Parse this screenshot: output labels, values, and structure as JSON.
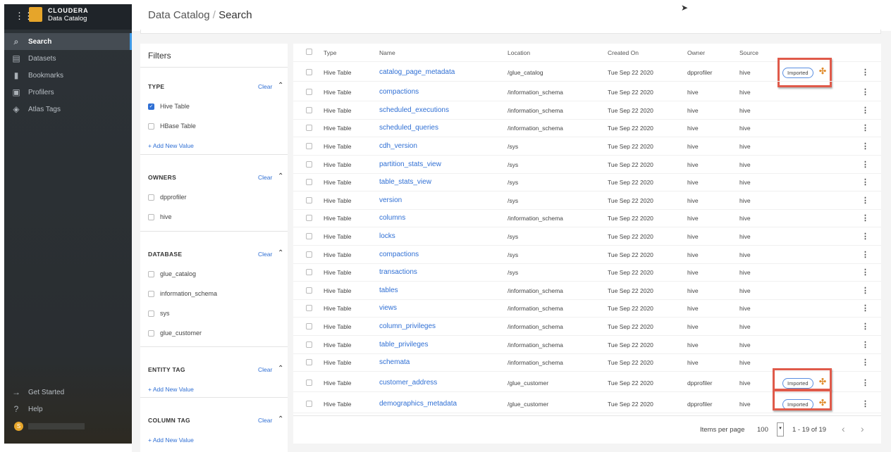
{
  "app": {
    "brand": "CLOUDERA",
    "product": "Data Catalog",
    "user_initial": "S"
  },
  "breadcrumb": {
    "root": "Data Catalog",
    "sep": "/",
    "current": "Search"
  },
  "nav": [
    {
      "label": "Search",
      "icon": "search-icon",
      "glyph": "⌕",
      "active": true
    },
    {
      "label": "Datasets",
      "icon": "datasets-icon",
      "glyph": "▤"
    },
    {
      "label": "Bookmarks",
      "icon": "bookmark-icon",
      "glyph": "▮"
    },
    {
      "label": "Profilers",
      "icon": "profilers-icon",
      "glyph": "▣"
    },
    {
      "label": "Atlas Tags",
      "icon": "tag-icon",
      "glyph": "◈"
    }
  ],
  "nav_bottom": [
    {
      "label": "Get Started",
      "icon": "arrow-right-icon",
      "glyph": "→"
    },
    {
      "label": "Help",
      "icon": "help-icon",
      "glyph": "?"
    }
  ],
  "filters": {
    "title": "Filters",
    "clear": "Clear",
    "add": "+ Add New Value",
    "sections": [
      {
        "title": "TYPE",
        "options": [
          {
            "label": "Hive Table",
            "checked": true
          },
          {
            "label": "HBase Table",
            "checked": false
          }
        ],
        "add": true
      },
      {
        "title": "OWNERS",
        "options": [
          {
            "label": "dpprofiler"
          },
          {
            "label": "hive"
          }
        ]
      },
      {
        "title": "DATABASE",
        "options": [
          {
            "label": "glue_catalog"
          },
          {
            "label": "information_schema"
          },
          {
            "label": "sys"
          },
          {
            "label": "glue_customer"
          }
        ]
      },
      {
        "title": "ENTITY TAG",
        "options": [],
        "add": true
      },
      {
        "title": "COLUMN TAG",
        "options": [],
        "add": true
      }
    ]
  },
  "table": {
    "columns": [
      "Type",
      "Name",
      "Location",
      "Created On",
      "Owner",
      "Source"
    ],
    "badge": "Imported",
    "rows": [
      [
        "Hive Table",
        "catalog_page_metadata",
        "/glue_catalog",
        "Tue Sep 22 2020",
        "dpprofiler",
        "hive",
        true
      ],
      [
        "Hive Table",
        "compactions",
        "/information_schema",
        "Tue Sep 22 2020",
        "hive",
        "hive",
        false
      ],
      [
        "Hive Table",
        "scheduled_executions",
        "/information_schema",
        "Tue Sep 22 2020",
        "hive",
        "hive",
        false
      ],
      [
        "Hive Table",
        "scheduled_queries",
        "/information_schema",
        "Tue Sep 22 2020",
        "hive",
        "hive",
        false
      ],
      [
        "Hive Table",
        "cdh_version",
        "/sys",
        "Tue Sep 22 2020",
        "hive",
        "hive",
        false
      ],
      [
        "Hive Table",
        "partition_stats_view",
        "/sys",
        "Tue Sep 22 2020",
        "hive",
        "hive",
        false
      ],
      [
        "Hive Table",
        "table_stats_view",
        "/sys",
        "Tue Sep 22 2020",
        "hive",
        "hive",
        false
      ],
      [
        "Hive Table",
        "version",
        "/sys",
        "Tue Sep 22 2020",
        "hive",
        "hive",
        false
      ],
      [
        "Hive Table",
        "columns",
        "/information_schema",
        "Tue Sep 22 2020",
        "hive",
        "hive",
        false
      ],
      [
        "Hive Table",
        "locks",
        "/sys",
        "Tue Sep 22 2020",
        "hive",
        "hive",
        false
      ],
      [
        "Hive Table",
        "compactions",
        "/sys",
        "Tue Sep 22 2020",
        "hive",
        "hive",
        false
      ],
      [
        "Hive Table",
        "transactions",
        "/sys",
        "Tue Sep 22 2020",
        "hive",
        "hive",
        false
      ],
      [
        "Hive Table",
        "tables",
        "/information_schema",
        "Tue Sep 22 2020",
        "hive",
        "hive",
        false
      ],
      [
        "Hive Table",
        "views",
        "/information_schema",
        "Tue Sep 22 2020",
        "hive",
        "hive",
        false
      ],
      [
        "Hive Table",
        "column_privileges",
        "/information_schema",
        "Tue Sep 22 2020",
        "hive",
        "hive",
        false
      ],
      [
        "Hive Table",
        "table_privileges",
        "/information_schema",
        "Tue Sep 22 2020",
        "hive",
        "hive",
        false
      ],
      [
        "Hive Table",
        "schemata",
        "/information_schema",
        "Tue Sep 22 2020",
        "hive",
        "hive",
        false
      ],
      [
        "Hive Table",
        "customer_address",
        "/glue_customer",
        "Tue Sep 22 2020",
        "dpprofiler",
        "hive",
        true
      ],
      [
        "Hive Table",
        "demographics_metadata",
        "/glue_customer",
        "Tue Sep 22 2020",
        "dpprofiler",
        "hive",
        true
      ]
    ]
  },
  "pagination": {
    "items_label": "Items per page",
    "per_page": "100",
    "range": "1 - 19 of 19"
  }
}
